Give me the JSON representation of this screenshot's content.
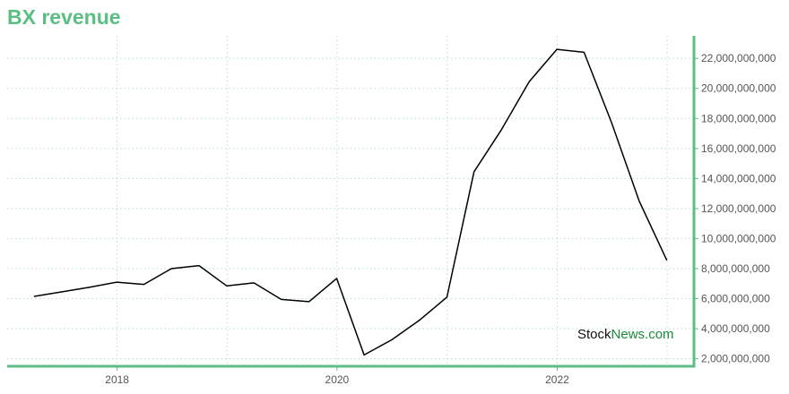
{
  "title": "BX revenue",
  "watermark": {
    "part1": "Stock",
    "part2": "News.com"
  },
  "colors": {
    "accent": "#5bbf84",
    "line": "#000000",
    "grid": "#b8ded0"
  },
  "chart_data": {
    "type": "line",
    "title": "BX revenue",
    "xlabel": "",
    "ylabel": "",
    "grid": true,
    "legend": "none",
    "y_axis_side": "right",
    "x_tick_labels": [
      "2018",
      "2020",
      "2022"
    ],
    "y_tick_labels": [
      "2,000,000,000",
      "4,000,000,000",
      "6,000,000,000",
      "8,000,000,000",
      "10,000,000,000",
      "12,000,000,000",
      "14,000,000,000",
      "16,000,000,000",
      "18,000,000,000",
      "20,000,000,000",
      "22,000,000,000"
    ],
    "xlim": [
      "2017-01-01",
      "2023-03-31"
    ],
    "ylim": [
      1500000000,
      23500000000
    ],
    "x": [
      "2017-03-31",
      "2017-06-30",
      "2017-09-30",
      "2017-12-31",
      "2018-03-31",
      "2018-06-30",
      "2018-09-30",
      "2018-12-31",
      "2019-03-31",
      "2019-06-30",
      "2019-09-30",
      "2019-12-31",
      "2020-03-31",
      "2020-06-30",
      "2020-09-30",
      "2020-12-31",
      "2021-03-31",
      "2021-06-30",
      "2021-09-30",
      "2021-12-31",
      "2022-03-31",
      "2022-06-30",
      "2022-09-30",
      "2022-12-31"
    ],
    "series": [
      {
        "values": [
          6150000000,
          6450000000,
          6750000000,
          7100000000,
          6950000000,
          8000000000,
          8200000000,
          6850000000,
          7050000000,
          5950000000,
          5800000000,
          7350000000,
          2250000000,
          3250000000,
          4550000000,
          6100000000,
          14450000000,
          17250000000,
          20450000000,
          22600000000,
          22400000000,
          17750000000,
          12500000000,
          8550000000
        ]
      }
    ]
  }
}
